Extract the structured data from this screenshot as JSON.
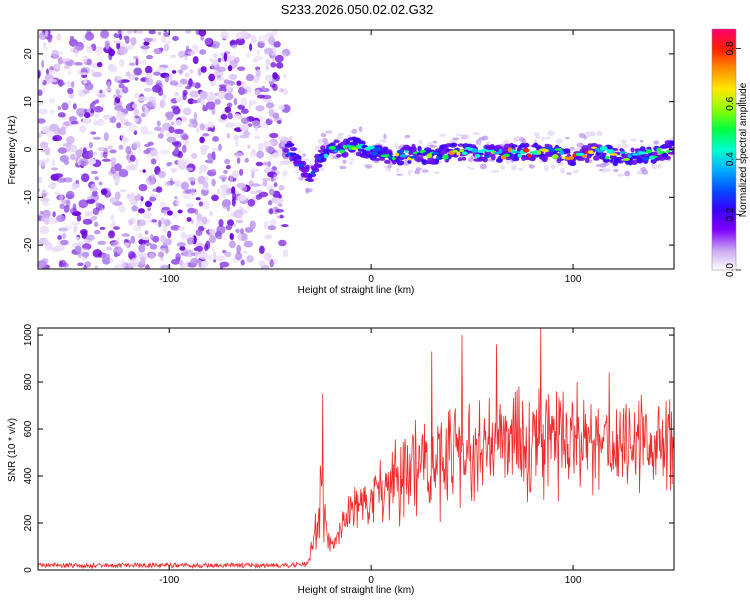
{
  "figure": {
    "title": "S233.2026.050.02.02.G32"
  },
  "chart_data": [
    {
      "type": "heatmap",
      "xlabel": "Height of straight line (km)",
      "ylabel": "Frequency (Hz)",
      "xlim": [
        -165,
        150
      ],
      "ylim": [
        -25,
        25
      ],
      "xticks": [
        -100,
        0,
        100
      ],
      "yticks": [
        -20,
        -10,
        0,
        10,
        20
      ],
      "noise_region_x": [
        -165,
        -42
      ],
      "signal_start_x": -42,
      "colorbar": {
        "label": "Normalized spectral amplitude",
        "range": [
          0,
          0.87
        ],
        "ticks": [
          "0.0",
          "0.2",
          "0.4",
          "0.6",
          "0.8"
        ],
        "colors": [
          "#ffffff",
          "#c9a5f0",
          "#7f00ff",
          "#3700ff",
          "#0050ff",
          "#00b0ff",
          "#00ffd0",
          "#00ff40",
          "#90ff00",
          "#ffe800",
          "#ff9000",
          "#ff2000",
          "#ff0070"
        ]
      },
      "signal_track": [
        {
          "x": -41,
          "f": 0.0,
          "amp": 0.35
        },
        {
          "x": -35,
          "f": -3.5,
          "amp": 0.3
        },
        {
          "x": -30,
          "f": -5.5,
          "amp": 0.32
        },
        {
          "x": -25,
          "f": -1.5,
          "amp": 0.35
        },
        {
          "x": -20,
          "f": 0.5,
          "amp": 0.45
        },
        {
          "x": -15,
          "f": 0.0,
          "amp": 0.6
        },
        {
          "x": -10,
          "f": 1.0,
          "amp": 0.55
        },
        {
          "x": -5,
          "f": 0.5,
          "amp": 0.5
        },
        {
          "x": 0,
          "f": -0.5,
          "amp": 0.45
        },
        {
          "x": 5,
          "f": -1.0,
          "amp": 0.55
        },
        {
          "x": 10,
          "f": -1.5,
          "amp": 0.6
        },
        {
          "x": 20,
          "f": -1.0,
          "amp": 0.6
        },
        {
          "x": 30,
          "f": -1.5,
          "amp": 0.55
        },
        {
          "x": 40,
          "f": -0.5,
          "amp": 0.65
        },
        {
          "x": 50,
          "f": -0.5,
          "amp": 0.6
        },
        {
          "x": 60,
          "f": -1.0,
          "amp": 0.65
        },
        {
          "x": 70,
          "f": -0.5,
          "amp": 0.7
        },
        {
          "x": 80,
          "f": -0.5,
          "amp": 0.75
        },
        {
          "x": 90,
          "f": -0.5,
          "amp": 0.8
        },
        {
          "x": 100,
          "f": -1.5,
          "amp": 0.82
        },
        {
          "x": 110,
          "f": -0.5,
          "amp": 0.85
        },
        {
          "x": 115,
          "f": -0.5,
          "amp": 0.8
        },
        {
          "x": 120,
          "f": -1.5,
          "amp": 0.6
        },
        {
          "x": 130,
          "f": -1.5,
          "amp": 0.55
        },
        {
          "x": 140,
          "f": -1.0,
          "amp": 0.5
        },
        {
          "x": 148,
          "f": 0.0,
          "amp": 0.45
        }
      ]
    },
    {
      "type": "line",
      "xlabel": "Height of straight line (km)",
      "ylabel": "SNR (10 * v/v)",
      "xlim": [
        -165,
        150
      ],
      "ylim": [
        0,
        1030
      ],
      "xticks": [
        -100,
        0,
        100
      ],
      "yticks": [
        0,
        200,
        400,
        600,
        800,
        1000
      ],
      "series": [
        {
          "color": "#ee2a2a",
          "envelope": [
            {
              "x": -165,
              "mean": 20,
              "spread": 10
            },
            {
              "x": -40,
              "mean": 20,
              "spread": 10
            },
            {
              "x": -32,
              "mean": 25,
              "spread": 15
            },
            {
              "x": -30,
              "mean": 70,
              "spread": 60
            },
            {
              "x": -26,
              "mean": 200,
              "spread": 180
            },
            {
              "x": -24,
              "mean": 380,
              "spread": 320
            },
            {
              "x": -22,
              "mean": 120,
              "spread": 80
            },
            {
              "x": -18,
              "mean": 110,
              "spread": 60
            },
            {
              "x": -15,
              "mean": 180,
              "spread": 90
            },
            {
              "x": -10,
              "mean": 250,
              "spread": 120
            },
            {
              "x": 0,
              "mean": 300,
              "spread": 150
            },
            {
              "x": 10,
              "mean": 370,
              "spread": 200
            },
            {
              "x": 20,
              "mean": 430,
              "spread": 250
            },
            {
              "x": 40,
              "mean": 480,
              "spread": 280
            },
            {
              "x": 60,
              "mean": 520,
              "spread": 290
            },
            {
              "x": 80,
              "mean": 540,
              "spread": 300
            },
            {
              "x": 100,
              "mean": 540,
              "spread": 260
            },
            {
              "x": 120,
              "mean": 530,
              "spread": 250
            },
            {
              "x": 150,
              "mean": 520,
              "spread": 240
            }
          ],
          "peaks": [
            {
              "x": -24,
              "y": 750
            },
            {
              "x": 30,
              "y": 930
            },
            {
              "x": 45,
              "y": 1000
            },
            {
              "x": 62,
              "y": 960
            },
            {
              "x": 84,
              "y": 1030
            },
            {
              "x": 102,
              "y": 800
            },
            {
              "x": 118,
              "y": 840
            }
          ]
        }
      ]
    }
  ]
}
